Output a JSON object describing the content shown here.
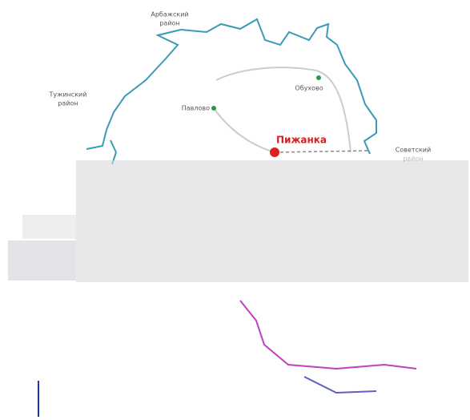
{
  "districts": [
    {
      "lines": [
        "Арбажский",
        "район"
      ]
    },
    {
      "lines": [
        "Тужинский",
        "район"
      ]
    },
    {
      "lines": [
        "Советский",
        "район"
      ]
    }
  ],
  "places": [
    {
      "name": "Обухово"
    },
    {
      "name": "Павлово"
    },
    {
      "name": "Пижанка"
    }
  ]
}
